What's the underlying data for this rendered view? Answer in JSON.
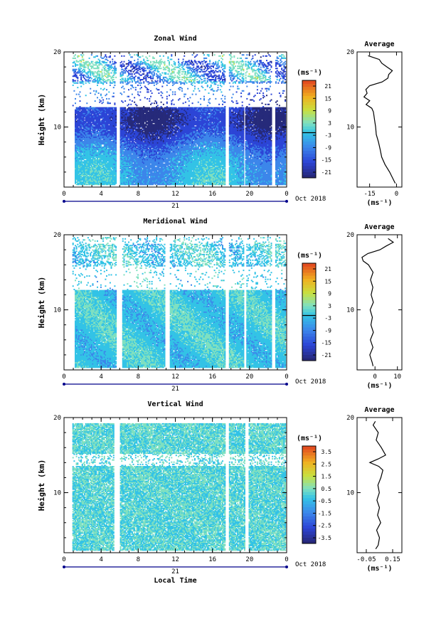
{
  "chart_data": [
    {
      "type": "heatmap",
      "title": "Zonal Wind",
      "xlabel": "",
      "ylabel": "Height (km)",
      "x_ticks": [
        "0",
        "4",
        "8",
        "12",
        "16",
        "20",
        "0"
      ],
      "y_ticks": [
        "10",
        "20"
      ],
      "xlim": [
        0,
        24
      ],
      "ylim": [
        2,
        20
      ],
      "date_label": "21",
      "month_label": "Oct 2018",
      "unit": "(ms⁻¹)",
      "colorbar_ticks": [
        "21",
        "15",
        "9",
        "3",
        "-3",
        "-9",
        "-15",
        "-21"
      ],
      "colorbar_range": [
        -24,
        24
      ],
      "profile": {
        "title": "Average",
        "x_ticks": [
          "-15",
          "0"
        ],
        "xlim": [
          -22,
          3
        ],
        "xlabel": "(ms⁻¹)",
        "y_ticks": [
          "10",
          "20"
        ],
        "heights": [
          2.5,
          3,
          4,
          5,
          6,
          7,
          8,
          9,
          10,
          11,
          12,
          12.5,
          13,
          13.5,
          14,
          14.5,
          15,
          15.5,
          16,
          16.5,
          17,
          17.5,
          18,
          18.5,
          19,
          19.5
        ],
        "values": [
          -1,
          -2,
          -4,
          -6,
          -8,
          -9,
          -10,
          -11,
          -12,
          -12,
          -13,
          -14,
          -17,
          -15,
          -18,
          -16,
          -17,
          -15,
          -8,
          -5,
          -4,
          -2,
          -5,
          -8,
          -10,
          -16
        ]
      }
    },
    {
      "type": "heatmap",
      "title": "Meridional Wind",
      "xlabel": "",
      "ylabel": "Height (km)",
      "x_ticks": [
        "0",
        "4",
        "8",
        "12",
        "16",
        "20",
        "0"
      ],
      "y_ticks": [
        "10",
        "20"
      ],
      "xlim": [
        0,
        24
      ],
      "ylim": [
        2,
        20
      ],
      "date_label": "21",
      "month_label": "Oct 2018",
      "unit": "(ms⁻¹)",
      "colorbar_ticks": [
        "21",
        "15",
        "9",
        "3",
        "-3",
        "-9",
        "-15",
        "-21"
      ],
      "colorbar_range": [
        -24,
        24
      ],
      "profile": {
        "title": "Average",
        "x_ticks": [
          "0",
          "10"
        ],
        "xlim": [
          -8,
          12
        ],
        "xlabel": "(ms⁻¹)",
        "y_ticks": [
          "10",
          "20"
        ],
        "heights": [
          2.5,
          3,
          4,
          5,
          6,
          7,
          8,
          9,
          10,
          11,
          12,
          13,
          14,
          15,
          16,
          16.5,
          17,
          17.5,
          18,
          18.5,
          19,
          19.5
        ],
        "values": [
          -1,
          -1.5,
          -2,
          -1,
          -2,
          -1,
          -2,
          -1,
          -2,
          -1,
          -2,
          -1,
          -2,
          -1,
          -3,
          -5,
          -6,
          -3,
          2,
          5,
          8,
          6
        ]
      }
    },
    {
      "type": "heatmap",
      "title": "Vertical Wind",
      "xlabel": "Local Time",
      "ylabel": "Height (km)",
      "x_ticks": [
        "0",
        "4",
        "8",
        "12",
        "16",
        "20",
        "0"
      ],
      "y_ticks": [
        "10",
        "20"
      ],
      "xlim": [
        0,
        24
      ],
      "ylim": [
        2,
        20
      ],
      "date_label": "21",
      "month_label": "Oct 2018",
      "unit": "(ms⁻¹)",
      "colorbar_ticks": [
        "3.5",
        "2.5",
        "1.5",
        "0.5",
        "-0.5",
        "-1.5",
        "-2.5",
        "-3.5"
      ],
      "colorbar_range": [
        -4,
        4
      ],
      "profile": {
        "title": "Average",
        "x_ticks": [
          "-0.05",
          "0.15"
        ],
        "xlim": [
          -0.12,
          0.22
        ],
        "xlabel": "(ms⁻¹)",
        "y_ticks": [
          "10",
          "20"
        ],
        "heights": [
          2.5,
          3,
          4,
          5,
          6,
          7,
          8,
          9,
          10,
          11,
          12,
          13,
          13.5,
          14,
          14.5,
          15,
          16,
          17,
          18,
          19,
          19.5
        ],
        "values": [
          0.02,
          0.04,
          0.05,
          0.03,
          0.06,
          0.04,
          0.05,
          0.03,
          0.05,
          0.04,
          0.06,
          0.08,
          0.05,
          -0.02,
          0.04,
          0.1,
          0.06,
          0.02,
          0.04,
          0.0,
          0.02
        ]
      }
    }
  ]
}
